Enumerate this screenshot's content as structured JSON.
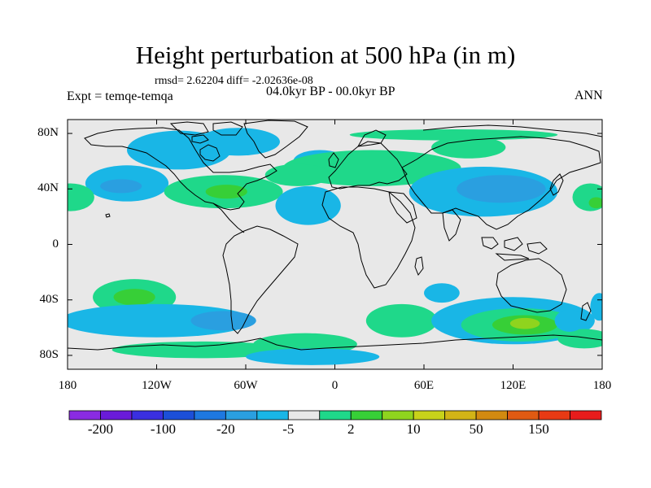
{
  "title": "Height perturbation at 500 hPa (in m)",
  "stats_line": "rmsd= 2.62204 diff= -2.02636e-08",
  "period_label": "04.0kyr BP - 00.0kyr BP",
  "experiment_label": "Expt = temqe-temqa",
  "season_label": "ANN",
  "map": {
    "projection": "cylindrical-equidistant",
    "lon_range": [
      -180,
      180
    ],
    "lat_range": [
      -90,
      90
    ],
    "lat_ticks": [
      {
        "label": "80N",
        "lat": 80
      },
      {
        "label": "40N",
        "lat": 40
      },
      {
        "label": "0",
        "lat": 0
      },
      {
        "label": "40S",
        "lat": -40
      },
      {
        "label": "80S",
        "lat": -80
      }
    ],
    "lon_ticks": [
      {
        "label": "180",
        "lon": -180
      },
      {
        "label": "120W",
        "lon": -120
      },
      {
        "label": "60W",
        "lon": -60
      },
      {
        "label": "0",
        "lon": 0
      },
      {
        "label": "60E",
        "lon": 60
      },
      {
        "label": "120E",
        "lon": 120
      },
      {
        "label": "180",
        "lon": 180
      }
    ],
    "background_color": "#e8e8e8"
  },
  "colorbar": {
    "colors": [
      "#8a2be2",
      "#6a1bd9",
      "#3a2fe0",
      "#1c4fd8",
      "#1e78e0",
      "#2a9fe0",
      "#19b6e6",
      "#e8e8e8",
      "#1fd88a",
      "#37cf37",
      "#8fd41e",
      "#c8d21a",
      "#d2b416",
      "#d28a10",
      "#e05a12",
      "#e83a14",
      "#e81c1c"
    ],
    "labels": [
      {
        "text": "-200",
        "boundary": 1
      },
      {
        "text": "-100",
        "boundary": 3
      },
      {
        "text": "-20",
        "boundary": 5
      },
      {
        "text": "-5",
        "boundary": 7
      },
      {
        "text": "2",
        "boundary": 9
      },
      {
        "text": "10",
        "boundary": 11
      },
      {
        "text": "50",
        "boundary": 13
      },
      {
        "text": "150",
        "boundary": 15
      }
    ]
  },
  "anomaly_regions": [
    {
      "name": "n-pacific-east-negative",
      "lon": -140,
      "lat": 44,
      "rlon": 28,
      "rlat": 13,
      "level": "neg1"
    },
    {
      "name": "n-pacific-east-negative-core",
      "lon": -144,
      "lat": 42,
      "rlon": 14,
      "rlat": 5,
      "level": "neg2"
    },
    {
      "name": "n-pacific-dateline-positive",
      "lon": -178,
      "lat": 34,
      "rlon": 16,
      "rlat": 10,
      "level": "pos1"
    },
    {
      "name": "n-pacific-west-positive",
      "lon": 172,
      "lat": 34,
      "rlon": 12,
      "rlat": 10,
      "level": "pos1"
    },
    {
      "name": "n-pacific-west-positive-core",
      "lon": 176,
      "lat": 30,
      "rlon": 5,
      "rlat": 4,
      "level": "pos2"
    },
    {
      "name": "north-america-positive",
      "lon": -75,
      "lat": 38,
      "rlon": 40,
      "rlat": 12,
      "level": "pos1"
    },
    {
      "name": "north-america-positive-core",
      "lon": -73,
      "lat": 38,
      "rlon": 14,
      "rlat": 5,
      "level": "pos2"
    },
    {
      "name": "canada-arctic-negative",
      "lon": -105,
      "lat": 68,
      "rlon": 35,
      "rlat": 14,
      "level": "neg1"
    },
    {
      "name": "greenland-negative",
      "lon": -65,
      "lat": 74,
      "rlon": 28,
      "rlat": 10,
      "level": "neg1"
    },
    {
      "name": "atlantic-negative",
      "lon": -18,
      "lat": 28,
      "rlon": 22,
      "rlat": 14,
      "level": "neg1"
    },
    {
      "name": "north-atlantic-negative",
      "lon": -10,
      "lat": 60,
      "rlon": 18,
      "rlat": 8,
      "level": "neg1"
    },
    {
      "name": "eurasia-positive",
      "lon": 25,
      "lat": 55,
      "rlon": 60,
      "rlat": 13,
      "level": "pos1"
    },
    {
      "name": "eurasia-positive-west",
      "lon": -25,
      "lat": 50,
      "rlon": 22,
      "rlat": 8,
      "level": "pos1"
    },
    {
      "name": "eurasia-positive-east",
      "lon": 90,
      "lat": 70,
      "rlon": 25,
      "rlat": 8,
      "level": "pos1"
    },
    {
      "name": "arctic-positive",
      "lon": 80,
      "lat": 79,
      "rlon": 70,
      "rlat": 4,
      "level": "pos1"
    },
    {
      "name": "asia-negative",
      "lon": 100,
      "lat": 38,
      "rlon": 50,
      "rlat": 18,
      "level": "neg1"
    },
    {
      "name": "asia-negative-core",
      "lon": 112,
      "lat": 40,
      "rlon": 30,
      "rlat": 10,
      "level": "neg2"
    },
    {
      "name": "sw-pacific-positive",
      "lon": -135,
      "lat": -38,
      "rlon": 28,
      "rlat": 13,
      "level": "pos1"
    },
    {
      "name": "sw-pacific-positive-core",
      "lon": -135,
      "lat": -38,
      "rlon": 14,
      "rlat": 6,
      "level": "pos2"
    },
    {
      "name": "south-pacific-negative",
      "lon": -120,
      "lat": -55,
      "rlon": 65,
      "rlat": 12,
      "level": "neg1"
    },
    {
      "name": "south-pacific-negative-core",
      "lon": -75,
      "lat": -55,
      "rlon": 22,
      "rlat": 7,
      "level": "neg2"
    },
    {
      "name": "south-atlantic-positive",
      "lon": -20,
      "lat": -72,
      "rlon": 35,
      "rlat": 8,
      "level": "pos1"
    },
    {
      "name": "southern-ocean-positive",
      "lon": -90,
      "lat": -76,
      "rlon": 60,
      "rlat": 6,
      "level": "pos1"
    },
    {
      "name": "southern-ocean-negative",
      "lon": -15,
      "lat": -81,
      "rlon": 45,
      "rlat": 6,
      "level": "neg1"
    },
    {
      "name": "south-indian-positive",
      "lon": 45,
      "lat": -55,
      "rlon": 24,
      "rlat": 12,
      "level": "pos1"
    },
    {
      "name": "south-indian-negative",
      "lon": 72,
      "lat": -35,
      "rlon": 12,
      "rlat": 7,
      "level": "neg1"
    },
    {
      "name": "southern-australia-negative",
      "lon": 120,
      "lat": -55,
      "rlon": 55,
      "rlat": 17,
      "level": "neg1"
    },
    {
      "name": "southern-australia-positive",
      "lon": 125,
      "lat": -58,
      "rlon": 40,
      "rlat": 12,
      "level": "pos1"
    },
    {
      "name": "southern-australia-positive-core",
      "lon": 128,
      "lat": -58,
      "rlon": 22,
      "rlat": 7,
      "level": "pos2"
    },
    {
      "name": "southern-australia-positive-peak",
      "lon": 128,
      "lat": -57,
      "rlon": 10,
      "rlat": 4,
      "level": "pos3"
    },
    {
      "name": "se-pacific-positive",
      "lon": 168,
      "lat": -68,
      "rlon": 18,
      "rlat": 7,
      "level": "pos1"
    },
    {
      "name": "se-pacific-negative",
      "lon": 178,
      "lat": -45,
      "rlon": 6,
      "rlat": 10,
      "level": "neg1"
    },
    {
      "name": "tasman-negative",
      "lon": 158,
      "lat": -55,
      "rlon": 10,
      "rlat": 8,
      "level": "neg1"
    }
  ]
}
